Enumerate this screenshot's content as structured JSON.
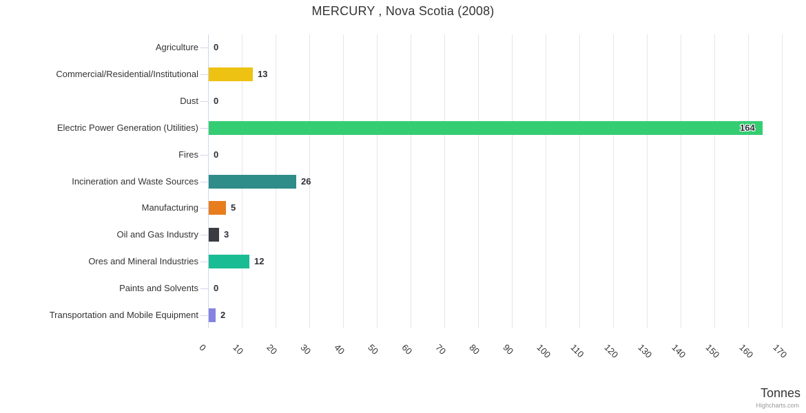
{
  "title": "MERCURY , Nova Scotia (2008)",
  "chart_data": {
    "type": "bar",
    "orientation": "horizontal",
    "title": "MERCURY , Nova Scotia (2008)",
    "categories": [
      "Agriculture",
      "Commercial/Residential/Institutional",
      "Dust",
      "Electric Power Generation (Utilities)",
      "Fires",
      "Incineration and Waste Sources",
      "Manufacturing",
      "Oil and Gas Industry",
      "Ores and Mineral Industries",
      "Paints and Solvents",
      "Transportation and Mobile Equipment"
    ],
    "values": [
      0,
      13,
      0,
      164,
      0,
      26,
      5,
      3,
      12,
      0,
      2
    ],
    "bar_colors": [
      "#8583e1",
      "#edc213",
      "#8583e1",
      "#35cd72",
      "#8583e1",
      "#2e8c89",
      "#e87d1e",
      "#3b3b42",
      "#1abc93",
      "#8583e1",
      "#8583e1"
    ],
    "xlabel": "Tonnes",
    "ylabel": "",
    "xlim": [
      0,
      170
    ],
    "x_ticks": [
      0,
      10,
      20,
      30,
      40,
      50,
      60,
      70,
      80,
      90,
      100,
      110,
      120,
      130,
      140,
      150,
      160,
      170
    ],
    "grid": true,
    "legend": "none"
  },
  "footer": {
    "axis_title": "Tonnes",
    "credits": "Highcharts.com"
  },
  "colors": {
    "grid": "#e6e6e6",
    "axis_line": "#ccd6eb",
    "tick": "#ccd6eb",
    "text": "#333333",
    "value_text": "#2f2f38",
    "credits_text": "#999999"
  }
}
